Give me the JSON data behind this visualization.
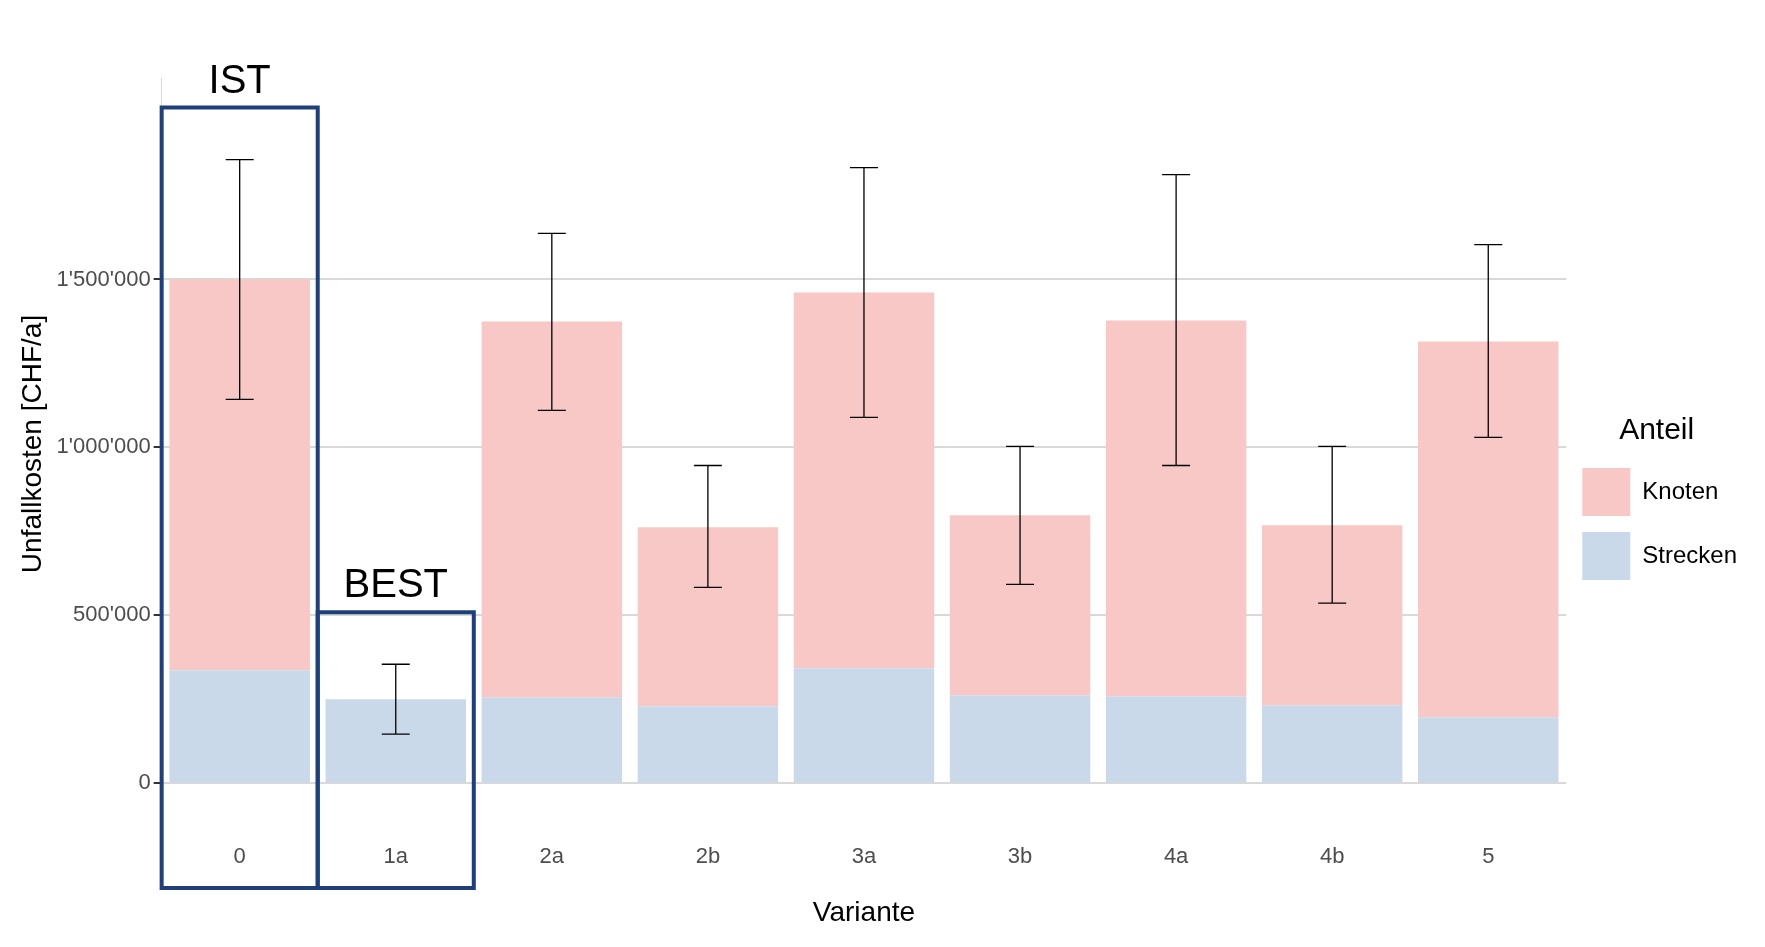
{
  "chart_data": {
    "type": "bar",
    "stacked": true,
    "xlabel": "Variante",
    "ylabel": "Unfallkosten [CHF/a]",
    "legend_title": "Anteil",
    "legend": "right",
    "grid": "y",
    "categories": [
      "0",
      "1a",
      "2a",
      "2b",
      "3a",
      "3b",
      "4a",
      "4b",
      "5"
    ],
    "series": [
      {
        "name": "Strecken",
        "color": "#c9d9ea",
        "values": [
          336000,
          250000,
          256000,
          229000,
          342000,
          262000,
          259000,
          232000,
          196000
        ]
      },
      {
        "name": "Knoten",
        "color": "#f8c8c6",
        "values": [
          1164000,
          0,
          1119000,
          533000,
          1119000,
          536000,
          1119000,
          536000,
          1119000
        ],
        "errors": [
          [
            1143000,
            1857000
          ],
          [
            146000,
            354000
          ],
          [
            1110000,
            1637000
          ],
          [
            583000,
            946000
          ],
          [
            1089000,
            1833000
          ],
          [
            592000,
            1003000
          ],
          [
            946000,
            1812000
          ],
          [
            536000,
            1003000
          ],
          [
            1030000,
            1604000
          ]
        ]
      }
    ],
    "yticks": [
      0,
      {
        "value": 500000,
        "label": "500'000"
      },
      {
        "value": 1000000,
        "label": "1'000'000"
      },
      {
        "value": 1500000,
        "label": "1'500'000"
      }
    ],
    "ylim": [
      -80000,
      2100000
    ],
    "annotations": [
      "IST",
      "BEST"
    ]
  }
}
